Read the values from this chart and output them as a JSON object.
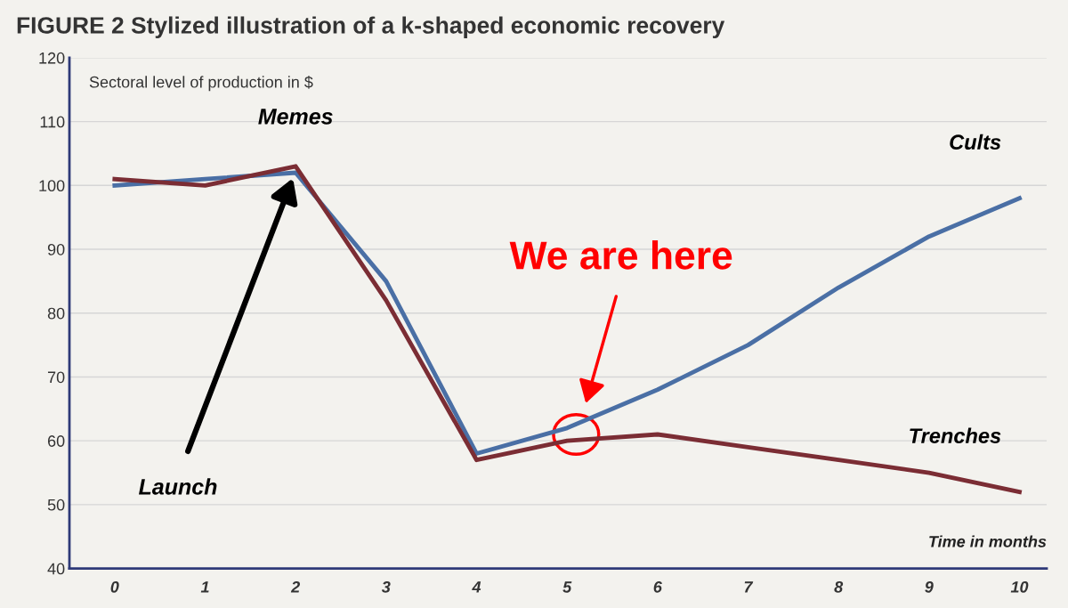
{
  "chart_data": {
    "type": "line",
    "title": "FIGURE 2 Stylized illustration of a k-shaped economic recovery",
    "ylabel": "Sectoral level of production in $",
    "xlabel": "Time in months",
    "x": [
      0,
      1,
      2,
      3,
      4,
      5,
      6,
      7,
      8,
      9,
      10
    ],
    "series": [
      {
        "name": "Cults",
        "color": "#4a6fa5",
        "values": [
          100,
          101,
          102,
          85,
          58,
          62,
          68,
          75,
          84,
          92,
          98
        ]
      },
      {
        "name": "Trenches",
        "color": "#7b2d34",
        "values": [
          101,
          100,
          103,
          82,
          57,
          60,
          61,
          59,
          57,
          55,
          52
        ]
      }
    ],
    "xlim": [
      -0.5,
      10.3
    ],
    "xticks": [
      0,
      1,
      2,
      3,
      4,
      5,
      6,
      7,
      8,
      9,
      10
    ],
    "ylim": [
      40,
      120
    ],
    "yticks": [
      40,
      50,
      60,
      70,
      80,
      90,
      100,
      110,
      120
    ],
    "grid": "y",
    "legend": false,
    "marker": "none",
    "line_style": "solid",
    "annotations": [
      {
        "text": "Memes",
        "x": 2,
        "y": 103
      },
      "We are here",
      "Launch"
    ]
  }
}
